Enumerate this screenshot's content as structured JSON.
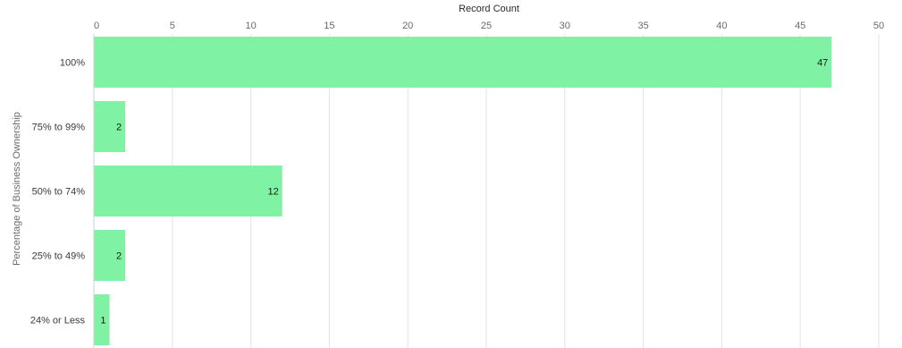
{
  "chart_data": {
    "type": "bar",
    "orientation": "horizontal",
    "xlabel": "Record Count",
    "ylabel": "Percentage of Business Ownership",
    "xlim": [
      0,
      50
    ],
    "ticks": [
      0,
      5,
      10,
      15,
      20,
      25,
      30,
      35,
      40,
      45,
      50
    ],
    "categories": [
      "100%",
      "75% to 99%",
      "50% to 74%",
      "25% to 49%",
      "24% or Less"
    ],
    "values": [
      47,
      2,
      12,
      2,
      1
    ],
    "bar_color": "#80f2a4",
    "grid": true,
    "xaxis_position": "top"
  }
}
